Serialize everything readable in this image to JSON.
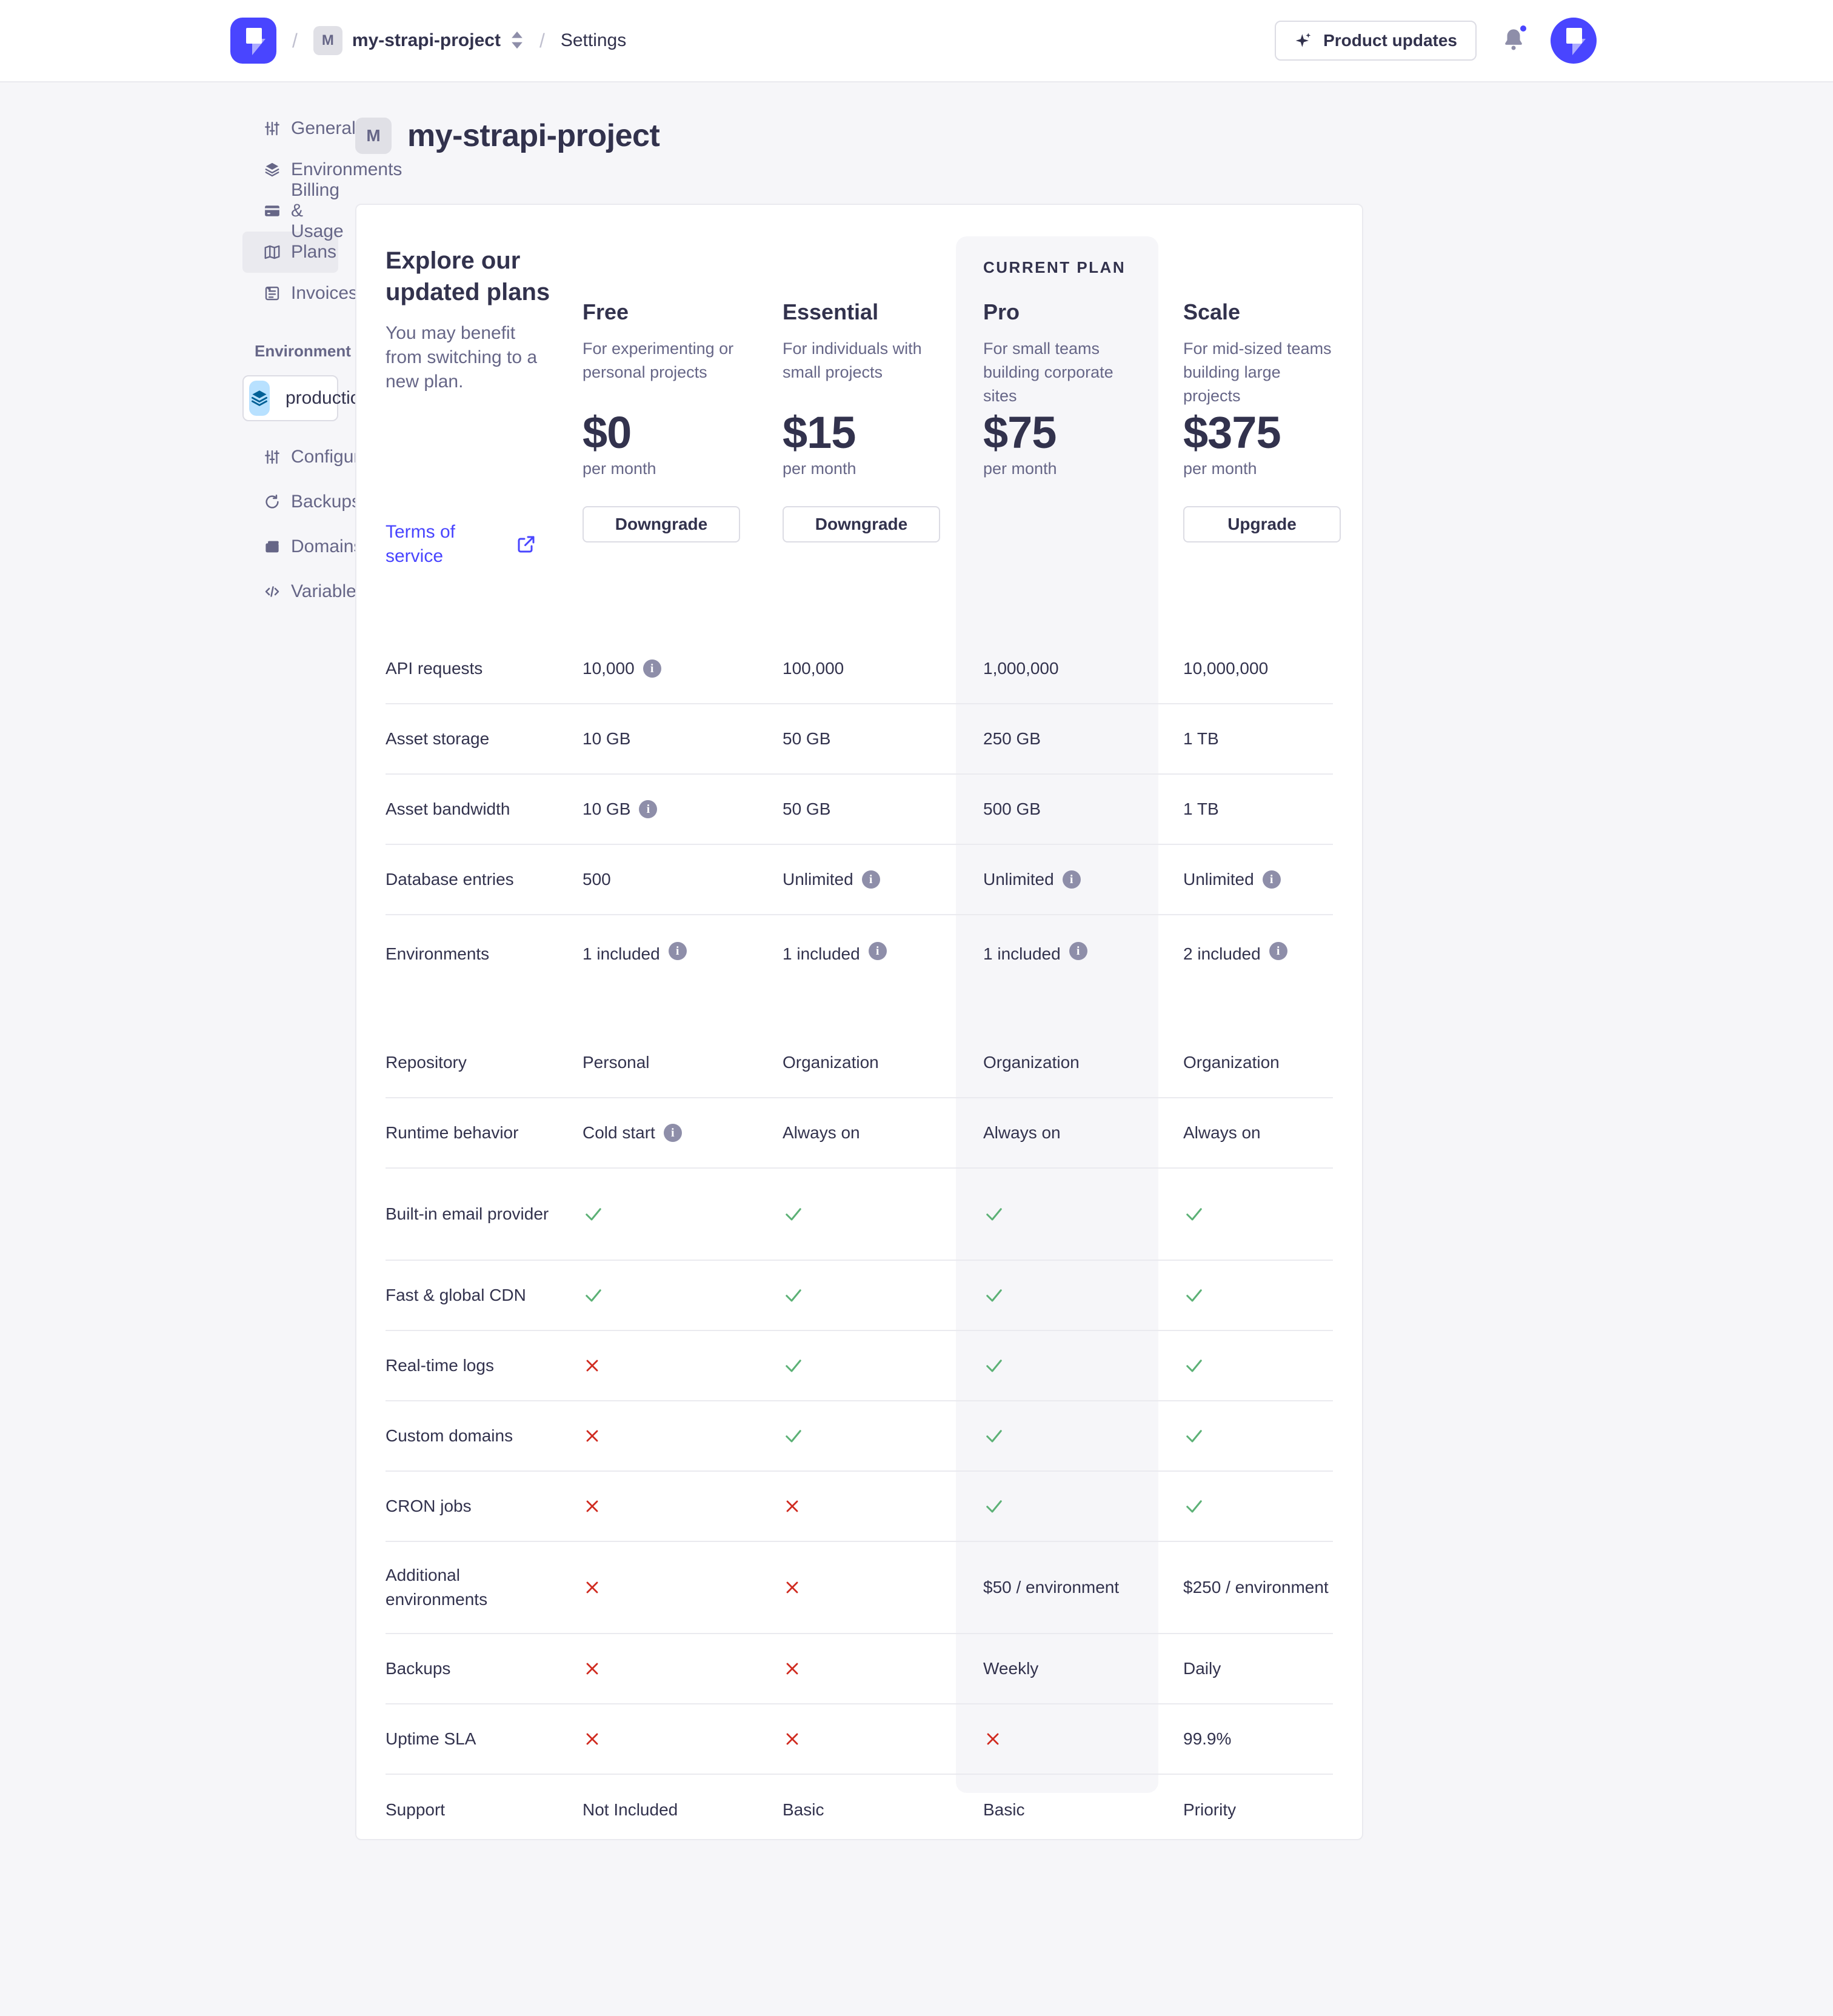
{
  "header": {
    "separator": "/",
    "project_badge": "M",
    "project_name": "my-strapi-project",
    "settings_label": "Settings",
    "product_updates_label": "Product updates"
  },
  "sidebar": {
    "items": [
      {
        "label": "General",
        "icon": "sliders-icon",
        "active": false
      },
      {
        "label": "Environments",
        "icon": "layers-icon",
        "active": false
      },
      {
        "label": "Billing & Usage",
        "icon": "card-icon",
        "active": false
      },
      {
        "label": "Plans",
        "icon": "map-icon",
        "active": true
      },
      {
        "label": "Invoices",
        "icon": "invoice-icon",
        "active": false
      }
    ],
    "environment_label": "Environment",
    "environment_value": "production",
    "environment_icon": "layers-icon",
    "env_items": [
      {
        "label": "Configuration",
        "icon": "sliders-icon"
      },
      {
        "label": "Backups",
        "icon": "refresh-icon"
      },
      {
        "label": "Domains",
        "icon": "folder-icon"
      },
      {
        "label": "Variables",
        "icon": "code-icon"
      }
    ]
  },
  "page": {
    "badge": "M",
    "title": "my-strapi-project"
  },
  "intro": {
    "heading": "Explore our updated plans",
    "description": "You may benefit from switching to a new plan.",
    "link_label": "Terms of service"
  },
  "colors": {
    "accent": "#4945FF",
    "success": "#5CB176",
    "danger": "#D02B20",
    "info_badge": "#8E8EA9",
    "current_plan_bg": "#F6F6F9"
  },
  "plans": [
    {
      "name": "Free",
      "tagline": "For experimenting or personal projects",
      "price": "$0",
      "period": "per month",
      "button": "Downgrade",
      "current": false,
      "current_label": ""
    },
    {
      "name": "Essential",
      "tagline": "For individuals with small projects",
      "price": "$15",
      "period": "per month",
      "button": "Downgrade",
      "current": false,
      "current_label": ""
    },
    {
      "name": "Pro",
      "tagline": "For small teams building corporate sites",
      "price": "$75",
      "period": "per month",
      "button": null,
      "current": true,
      "current_label": "CURRENT PLAN"
    },
    {
      "name": "Scale",
      "tagline": "For mid-sized teams building large projects",
      "price": "$375",
      "period": "per month",
      "button": "Upgrade",
      "current": false,
      "current_label": ""
    }
  ],
  "features": [
    {
      "label": "API requests",
      "variant": null,
      "cells": [
        {
          "text": "10,000",
          "info": true
        },
        {
          "text": "100,000"
        },
        {
          "text": "1,000,000"
        },
        {
          "text": "10,000,000"
        }
      ]
    },
    {
      "label": "Asset storage",
      "variant": null,
      "cells": [
        {
          "text": "10 GB"
        },
        {
          "text": "50 GB"
        },
        {
          "text": "250 GB"
        },
        {
          "text": "1 TB"
        }
      ]
    },
    {
      "label": "Asset bandwidth",
      "variant": null,
      "cells": [
        {
          "text": "10 GB",
          "info": true
        },
        {
          "text": "50 GB"
        },
        {
          "text": "500 GB"
        },
        {
          "text": "1 TB"
        }
      ]
    },
    {
      "label": "Database entries",
      "variant": null,
      "cells": [
        {
          "text": "500"
        },
        {
          "text": "Unlimited",
          "info": true
        },
        {
          "text": "Unlimited",
          "info": true
        },
        {
          "text": "Unlimited",
          "info": true
        }
      ]
    },
    {
      "label": "Environments",
      "variant": "tall",
      "cells": [
        {
          "text": "1 included",
          "info": true
        },
        {
          "text": "1 included",
          "info": true
        },
        {
          "text": "1 included",
          "info": true
        },
        {
          "text": "2 included",
          "info": true
        }
      ]
    },
    {
      "label": "Repository",
      "variant": null,
      "cells": [
        {
          "text": "Personal"
        },
        {
          "text": "Organization"
        },
        {
          "text": "Organization"
        },
        {
          "text": "Organization"
        }
      ]
    },
    {
      "label": "Runtime behavior",
      "variant": null,
      "cells": [
        {
          "text": "Cold start",
          "info": true
        },
        {
          "text": "Always on"
        },
        {
          "text": "Always on"
        },
        {
          "text": "Always on"
        }
      ]
    },
    {
      "label": "Built-in email provider",
      "variant": "twoline",
      "cells": [
        {
          "check": true
        },
        {
          "check": true
        },
        {
          "check": true
        },
        {
          "check": true
        }
      ]
    },
    {
      "label": "Fast & global CDN",
      "variant": null,
      "cells": [
        {
          "check": true
        },
        {
          "check": true
        },
        {
          "check": true
        },
        {
          "check": true
        }
      ]
    },
    {
      "label": "Real-time logs",
      "variant": null,
      "cells": [
        {
          "cross": true
        },
        {
          "check": true
        },
        {
          "check": true
        },
        {
          "check": true
        }
      ]
    },
    {
      "label": "Custom domains",
      "variant": null,
      "cells": [
        {
          "cross": true
        },
        {
          "check": true
        },
        {
          "check": true
        },
        {
          "check": true
        }
      ]
    },
    {
      "label": "CRON jobs",
      "variant": null,
      "cells": [
        {
          "cross": true
        },
        {
          "cross": true
        },
        {
          "check": true
        },
        {
          "check": true
        }
      ]
    },
    {
      "label": "Additional environments",
      "variant": "twoline",
      "cells": [
        {
          "cross": true
        },
        {
          "cross": true
        },
        {
          "text": "$50 / environment"
        },
        {
          "text": "$250 / environment"
        }
      ]
    },
    {
      "label": "Backups",
      "variant": null,
      "cells": [
        {
          "cross": true
        },
        {
          "cross": true
        },
        {
          "text": "Weekly"
        },
        {
          "text": "Daily"
        }
      ]
    },
    {
      "label": "Uptime SLA",
      "variant": null,
      "cells": [
        {
          "cross": true
        },
        {
          "cross": true
        },
        {
          "cross": true
        },
        {
          "text": "99.9%"
        }
      ]
    },
    {
      "label": "Support",
      "variant": null,
      "cells": [
        {
          "text": "Not Included"
        },
        {
          "text": "Basic"
        },
        {
          "text": "Basic"
        },
        {
          "text": "Priority"
        }
      ]
    }
  ]
}
